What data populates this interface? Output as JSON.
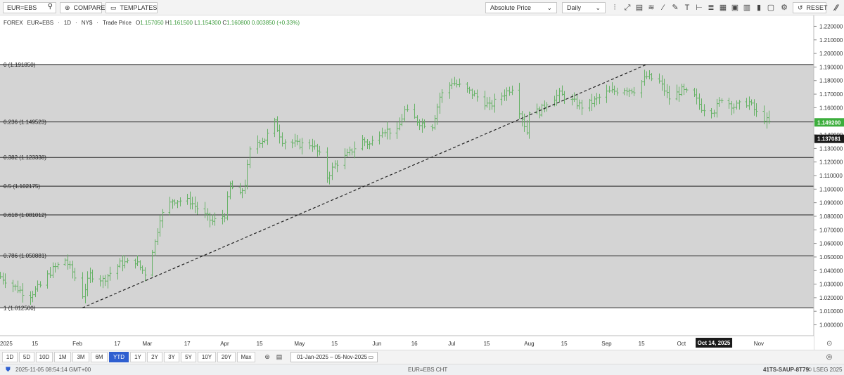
{
  "toolbar": {
    "symbol": "EUR=EBS",
    "compare_label": "COMPARE",
    "templates_label": "TEMPLATES",
    "price_type": "Absolute Price",
    "interval": "Daily",
    "reset_label": "RESET"
  },
  "legend": {
    "market": "FOREX",
    "symbol": "EUR=EBS",
    "interval": "1D",
    "exchange": "NY$",
    "price_type": "Trade Price",
    "open_label": "O",
    "open": "1.157050",
    "high_label": "H",
    "high": "1.161500",
    "low_label": "L",
    "low": "1.154300",
    "close_label": "C",
    "close": "1.160800",
    "change": "0.003850 (+0.33%)"
  },
  "colors": {
    "bar": "#66b266",
    "fib_zone": "#d4d4d4",
    "fib_line": "#222222",
    "last_price_bg": "#3cae3c",
    "crosshair_bg": "#1a1a1a",
    "accent": "#2f5fd0"
  },
  "chart_data": {
    "type": "ohlc",
    "ylim": [
      0.992,
      1.228
    ],
    "yticks": [
      "1.220000",
      "1.210000",
      "1.200000",
      "1.190000",
      "1.180000",
      "1.170000",
      "1.160000",
      "1.150000",
      "1.140000",
      "1.130000",
      "1.120000",
      "1.110000",
      "1.100000",
      "1.090000",
      "1.080000",
      "1.070000",
      "1.060000",
      "1.050000",
      "1.040000",
      "1.030000",
      "1.020000",
      "1.010000",
      "1.000000"
    ],
    "ytick_values": [
      1.22,
      1.21,
      1.2,
      1.19,
      1.18,
      1.17,
      1.16,
      1.15,
      1.14,
      1.13,
      1.12,
      1.11,
      1.1,
      1.09,
      1.08,
      1.07,
      1.06,
      1.05,
      1.04,
      1.03,
      1.02,
      1.01,
      1.0
    ],
    "xlim": [
      "2025-01-01",
      "2025-11-23"
    ],
    "xticks": [
      {
        "label": "2025",
        "date": "2025-01-01"
      },
      {
        "label": "15",
        "date": "2025-01-15"
      },
      {
        "label": "Feb",
        "date": "2025-02-01"
      },
      {
        "label": "17",
        "date": "2025-02-17"
      },
      {
        "label": "Mar",
        "date": "2025-03-01"
      },
      {
        "label": "17",
        "date": "2025-03-17"
      },
      {
        "label": "Apr",
        "date": "2025-04-01"
      },
      {
        "label": "15",
        "date": "2025-04-15"
      },
      {
        "label": "May",
        "date": "2025-05-01"
      },
      {
        "label": "15",
        "date": "2025-05-15"
      },
      {
        "label": "Jun",
        "date": "2025-06-01"
      },
      {
        "label": "16",
        "date": "2025-06-16"
      },
      {
        "label": "Jul",
        "date": "2025-07-01"
      },
      {
        "label": "15",
        "date": "2025-07-15"
      },
      {
        "label": "Aug",
        "date": "2025-08-01"
      },
      {
        "label": "15",
        "date": "2025-08-15"
      },
      {
        "label": "Sep",
        "date": "2025-09-01"
      },
      {
        "label": "15",
        "date": "2025-09-15"
      },
      {
        "label": "Oct",
        "date": "2025-10-01"
      },
      {
        "label": "Nov",
        "date": "2025-11-01"
      }
    ],
    "crosshair_x": {
      "label": "Oct 14, 2025",
      "date": "2025-10-14"
    },
    "fib_levels": [
      {
        "label": "0 (1.191850)",
        "value": 1.19185
      },
      {
        "label": "0.236 (1.149523)",
        "value": 1.149523
      },
      {
        "label": "0.382 (1.123338)",
        "value": 1.123338
      },
      {
        "label": "0.5 (1.102175)",
        "value": 1.102175
      },
      {
        "label": "0.618 (1.081012)",
        "value": 1.081012
      },
      {
        "label": "0.786 (1.050881)",
        "value": 1.050881
      },
      {
        "label": "1 (1.012500)",
        "value": 1.0125
      }
    ],
    "trendline": [
      {
        "date": "2025-02-03",
        "value": 1.0125
      },
      {
        "date": "2025-09-17",
        "value": 1.19185
      }
    ],
    "last_price": {
      "label": "1.149200",
      "value": 1.1492
    },
    "crosshair_price": {
      "label": "1.137081",
      "value": 1.137081
    },
    "anchors": [
      [
        "2025-01-01",
        1.0355
      ],
      [
        "2025-01-06",
        1.029
      ],
      [
        "2025-01-10",
        1.024
      ],
      [
        "2025-01-13",
        1.022
      ],
      [
        "2025-01-17",
        1.029
      ],
      [
        "2025-01-22",
        1.041
      ],
      [
        "2025-01-27",
        1.048
      ],
      [
        "2025-01-30",
        1.039
      ],
      [
        "2025-02-03",
        1.022
      ],
      [
        "2025-02-06",
        1.037
      ],
      [
        "2025-02-11",
        1.033
      ],
      [
        "2025-02-18",
        1.045
      ],
      [
        "2025-02-24",
        1.047
      ],
      [
        "2025-02-28",
        1.038
      ],
      [
        "2025-03-04",
        1.061
      ],
      [
        "2025-03-06",
        1.079
      ],
      [
        "2025-03-11",
        1.092
      ],
      [
        "2025-03-18",
        1.091
      ],
      [
        "2025-03-25",
        1.079
      ],
      [
        "2025-03-27",
        1.076
      ],
      [
        "2025-04-01",
        1.081
      ],
      [
        "2025-04-03",
        1.103
      ],
      [
        "2025-04-07",
        1.095
      ],
      [
        "2025-04-09",
        1.104
      ],
      [
        "2025-04-11",
        1.128
      ],
      [
        "2025-04-14",
        1.135
      ],
      [
        "2025-04-17",
        1.137
      ],
      [
        "2025-04-21",
        1.149
      ],
      [
        "2025-04-24",
        1.136
      ],
      [
        "2025-04-30",
        1.133
      ],
      [
        "2025-05-06",
        1.133
      ],
      [
        "2025-05-09",
        1.125
      ],
      [
        "2025-05-12",
        1.109
      ],
      [
        "2025-05-15",
        1.118
      ],
      [
        "2025-05-20",
        1.125
      ],
      [
        "2025-05-26",
        1.136
      ],
      [
        "2025-05-29",
        1.133
      ],
      [
        "2025-06-03",
        1.144
      ],
      [
        "2025-06-09",
        1.142
      ],
      [
        "2025-06-12",
        1.158
      ],
      [
        "2025-06-18",
        1.149
      ],
      [
        "2025-06-23",
        1.147
      ],
      [
        "2025-06-26",
        1.168
      ],
      [
        "2025-07-01",
        1.179
      ],
      [
        "2025-07-07",
        1.173
      ],
      [
        "2025-07-11",
        1.168
      ],
      [
        "2025-07-16",
        1.161
      ],
      [
        "2025-07-21",
        1.169
      ],
      [
        "2025-07-25",
        1.175
      ],
      [
        "2025-07-28",
        1.158
      ],
      [
        "2025-07-31",
        1.142
      ],
      [
        "2025-08-01",
        1.158
      ],
      [
        "2025-08-05",
        1.157
      ],
      [
        "2025-08-08",
        1.164
      ],
      [
        "2025-08-13",
        1.17
      ],
      [
        "2025-08-19",
        1.164
      ],
      [
        "2025-08-22",
        1.161
      ],
      [
        "2025-08-26",
        1.164
      ],
      [
        "2025-09-01",
        1.171
      ],
      [
        "2025-09-08",
        1.174
      ],
      [
        "2025-09-12",
        1.173
      ],
      [
        "2025-09-17",
        1.183
      ],
      [
        "2025-09-22",
        1.179
      ],
      [
        "2025-09-26",
        1.167
      ],
      [
        "2025-10-01",
        1.173
      ],
      [
        "2025-10-06",
        1.168
      ],
      [
        "2025-10-09",
        1.16
      ],
      [
        "2025-10-14",
        1.158
      ],
      [
        "2025-10-17",
        1.167
      ],
      [
        "2025-10-22",
        1.161
      ],
      [
        "2025-10-28",
        1.164
      ],
      [
        "2025-10-31",
        1.156
      ],
      [
        "2025-11-03",
        1.152
      ],
      [
        "2025-11-05",
        1.149
      ]
    ]
  },
  "range_buttons": [
    "1D",
    "5D",
    "10D",
    "1M",
    "3M",
    "6M",
    "YTD",
    "1Y",
    "2Y",
    "3Y",
    "5Y",
    "10Y",
    "20Y",
    "Max"
  ],
  "active_range": "YTD",
  "date_range": {
    "from": "01-Jan-2025",
    "sep": "–",
    "to": "05-Nov-2025"
  },
  "status": {
    "timestamp": "2025-11-05 08:54:14 GMT+00",
    "chart_name": "EUR=EBS CHT",
    "id": "41TS-SAUP-8T79",
    "copyright": "© LSEG 2025"
  }
}
